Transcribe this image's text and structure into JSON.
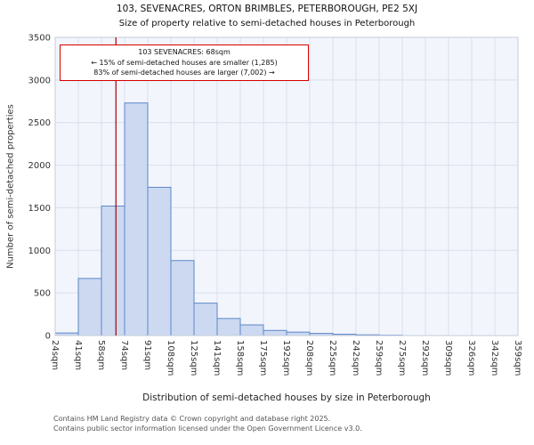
{
  "chart_data": {
    "type": "bar",
    "title": "103, SEVENACRES, ORTON BRIMBLES, PETERBOROUGH, PE2 5XJ",
    "subtitle": "Size of property relative to semi-detached houses in Peterborough",
    "categories": [
      "24sqm",
      "41sqm",
      "58sqm",
      "74sqm",
      "91sqm",
      "108sqm",
      "125sqm",
      "141sqm",
      "158sqm",
      "175sqm",
      "192sqm",
      "208sqm",
      "225sqm",
      "242sqm",
      "259sqm",
      "275sqm",
      "292sqm",
      "309sqm",
      "326sqm",
      "342sqm",
      "359sqm"
    ],
    "tick_values": [
      24,
      41,
      58,
      74,
      91,
      108,
      125,
      141,
      158,
      175,
      192,
      208,
      225,
      242,
      259,
      275,
      292,
      309,
      326,
      342,
      359
    ],
    "values": [
      30,
      670,
      1520,
      2730,
      1740,
      880,
      380,
      200,
      125,
      60,
      40,
      25,
      15,
      8,
      4,
      0,
      0,
      0,
      0,
      0
    ],
    "xlabel": "Distribution of semi-detached houses by size in Peterborough",
    "ylabel": "Number of semi-detached properties",
    "ylim": [
      0,
      3500
    ],
    "yticks": [
      0,
      500,
      1000,
      1500,
      2000,
      2500,
      3000,
      3500
    ],
    "ytick_labels": [
      "0",
      "500",
      "1000",
      "1500",
      "2000",
      "2500",
      "3000",
      "3500"
    ],
    "grid": true,
    "legend": false,
    "marker": {
      "value_sqm": 68,
      "label": "103 SEVENACRES: 68sqm",
      "pct_smaller": 15,
      "count_smaller": "1,285",
      "pct_larger": 83,
      "count_larger": "7,002"
    },
    "colors": {
      "bar_fill": "#ccd9f1",
      "bar_stroke": "#5b87c9",
      "grid": "#d9dfeb",
      "frame": "#c4cbdb",
      "plot_bg": "#f2f5fc",
      "marker_line": "#a40000",
      "annotation_border": "#d40000"
    }
  },
  "annotation": {
    "line1": "103 SEVENACRES: 68sqm",
    "line2": "← 15% of semi-detached houses are smaller (1,285)",
    "line3": "83% of semi-detached houses are larger (7,002) →"
  },
  "footer": {
    "line1": "Contains HM Land Registry data © Crown copyright and database right 2025.",
    "line2": "Contains public sector information licensed under the Open Government Licence v3.0."
  }
}
